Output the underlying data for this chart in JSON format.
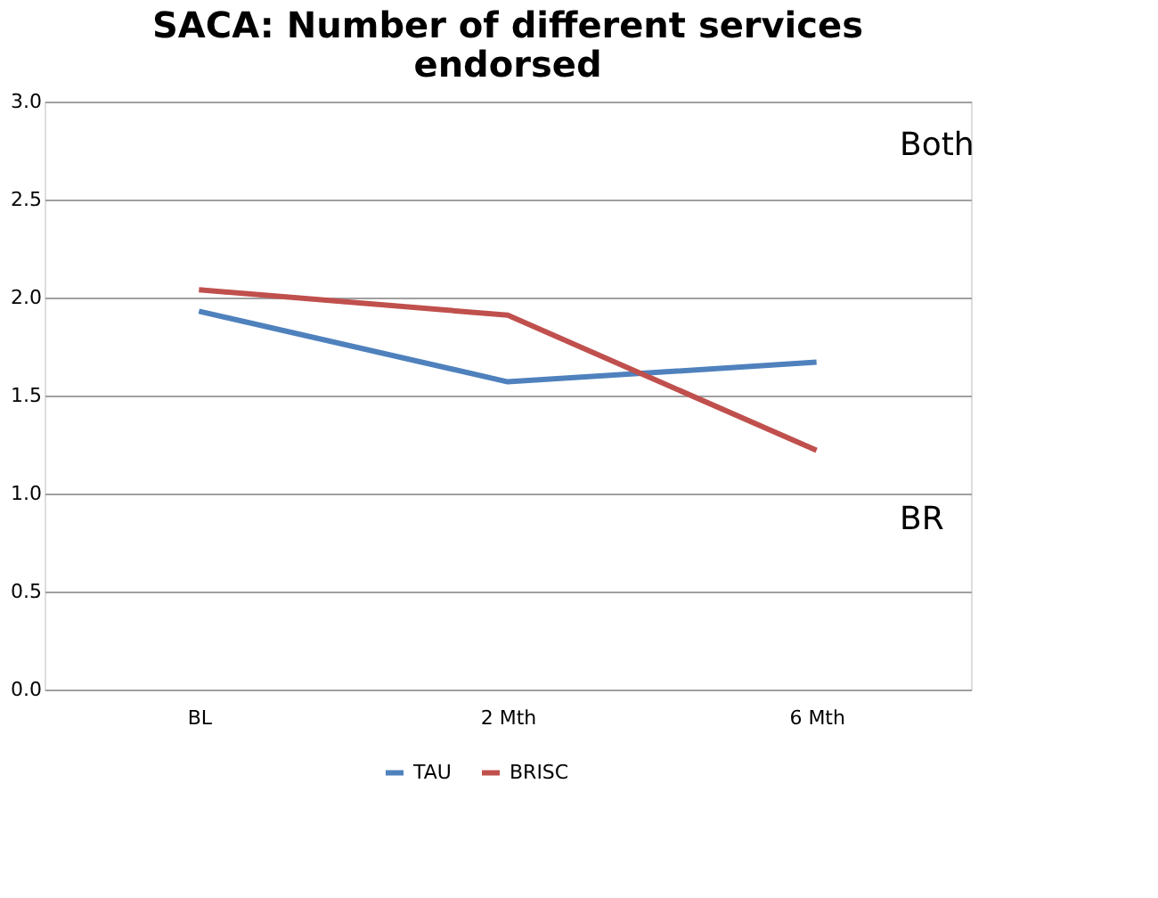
{
  "chart_data": {
    "type": "line",
    "title": [
      "SACA: Number of different services",
      "endorsed"
    ],
    "categories": [
      "BL",
      "2 Mth",
      "6 Mth"
    ],
    "series": [
      {
        "name": "TAU",
        "color": "#4f81bd",
        "values": [
          1.93,
          1.57,
          1.67
        ]
      },
      {
        "name": "BRISC",
        "color": "#c0504d",
        "values": [
          2.04,
          1.91,
          1.22
        ]
      }
    ],
    "ylim": [
      0,
      3
    ],
    "yticks": [
      {
        "value": 0,
        "label": "0.0"
      },
      {
        "value": 0.5,
        "label": "0.5"
      },
      {
        "value": 1,
        "label": "1.0"
      },
      {
        "value": 1.5,
        "label": "1.5"
      },
      {
        "value": 2,
        "label": "2.0"
      },
      {
        "value": 2.5,
        "label": "2.5"
      },
      {
        "value": 3,
        "label": "3.0"
      }
    ],
    "grid": "y",
    "legend": "bottom",
    "marker": "none",
    "line_style": "solid",
    "annotations": [
      "Both",
      "BR"
    ]
  }
}
